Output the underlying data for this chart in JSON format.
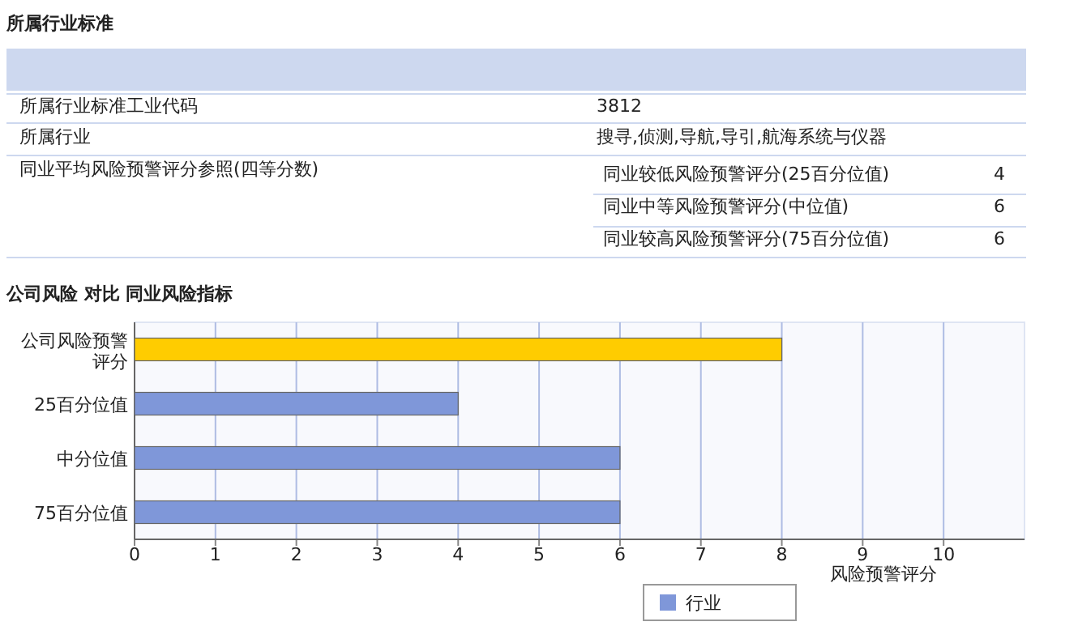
{
  "chart_data": [
    {
      "type": "other",
      "title": "所属行业标准",
      "annotations": [
        "所属行业标准工业代码",
        "3812",
        "所属行业",
        "搜寻,侦测,导航,导引,航海系统与仪器",
        "同业平均风险预警评分参照(四等分数)",
        "同业较低风险预警评分(25百分位值)",
        "4",
        "同业中等风险预警评分(中位值)",
        "6",
        "同业较高风险预警评分(75百分位值)",
        "6"
      ]
    },
    {
      "type": "bar",
      "orientation": "horizontal",
      "title": "公司风险 对比 同业风险指标",
      "categories": [
        "公司风险预警评分",
        "25百分位值",
        "中分位值",
        "75百分位值"
      ],
      "series": [
        {
          "color": "#ffcc00",
          "values": [
            8,
            null,
            null,
            null
          ]
        },
        {
          "name": "行业",
          "color": "#7f97d9",
          "values": [
            null,
            4,
            6,
            6
          ]
        }
      ],
      "xlabel": "风险预警评分",
      "xlim": [
        0,
        11
      ],
      "xticks": [
        0,
        1,
        2,
        3,
        4,
        5,
        6,
        7,
        8,
        9,
        10
      ],
      "grid": "x",
      "legend": "bottom"
    }
  ]
}
